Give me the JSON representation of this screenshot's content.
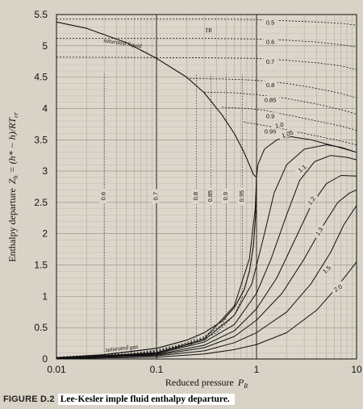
{
  "chart_data": {
    "type": "line",
    "xlabel": "Reduced pressure",
    "xlabel_symbol": "P",
    "xlabel_subscript": "R",
    "ylabel": "Enthalpy departure",
    "ylabel_expr": "Z",
    "ylabel_sub": "h",
    "ylabel_eq": "= (h* − h)/RT",
    "ylabel_eq_sub": "cr",
    "x_scale": "log",
    "xlim": [
      0.01,
      10
    ],
    "ylim": [
      0,
      5.5
    ],
    "x_ticks": [
      0.01,
      0.1,
      1,
      10
    ],
    "x_tick_labels": [
      "0.01",
      "0.1",
      "1",
      "10"
    ],
    "y_ticks": [
      0,
      0.5,
      1,
      1.5,
      2,
      2.5,
      3,
      3.5,
      4,
      4.5,
      5,
      5.5
    ],
    "y_tick_labels": [
      "0",
      "0.5",
      "1",
      "1.5",
      "2",
      "2.5",
      "3",
      "3.5",
      "4",
      "4.5",
      "5",
      "5.5"
    ],
    "grid": true,
    "annotations": {
      "saturated_liquid": "saturated liquid",
      "saturated_gas": "saturated gas",
      "tr": "TR"
    },
    "saturation_curves": [
      {
        "label": "saturated liquid",
        "x": [
          0.01,
          0.02,
          0.05,
          0.1,
          0.2,
          0.3,
          0.45,
          0.6,
          0.75,
          0.85,
          0.93,
          1.0
        ],
        "y": [
          5.38,
          5.28,
          5.05,
          4.8,
          4.5,
          4.25,
          3.9,
          3.6,
          3.3,
          3.1,
          2.95,
          2.9
        ]
      },
      {
        "label": "saturated gas",
        "x": [
          0.01,
          0.03,
          0.1,
          0.2,
          0.3,
          0.45,
          0.6,
          0.75,
          0.85,
          0.93,
          0.98,
          1.0
        ],
        "y": [
          0.02,
          0.07,
          0.17,
          0.3,
          0.42,
          0.6,
          0.82,
          1.1,
          1.4,
          1.8,
          2.3,
          2.9
        ]
      }
    ],
    "liquid_isotherms": [
      {
        "label": "0.5",
        "x": [
          0.01,
          0.3,
          1,
          2,
          4,
          7,
          10
        ],
        "y": [
          5.43,
          5.43,
          5.42,
          5.4,
          5.38,
          5.36,
          5.33
        ]
      },
      {
        "label": "0.6",
        "x": [
          0.01,
          0.3,
          1,
          2,
          4,
          7,
          10
        ],
        "y": [
          5.12,
          5.12,
          5.11,
          5.09,
          5.06,
          5.02,
          4.98
        ]
      },
      {
        "label": "0.7",
        "x": [
          0.01,
          0.3,
          1,
          2,
          4,
          7,
          10
        ],
        "y": [
          4.82,
          4.81,
          4.8,
          4.77,
          4.73,
          4.68,
          4.62
        ]
      },
      {
        "label": "0.8",
        "x": [
          0.2,
          0.5,
          1,
          2,
          4,
          7,
          10
        ],
        "y": [
          4.48,
          4.47,
          4.45,
          4.4,
          4.32,
          4.24,
          4.17
        ]
      },
      {
        "label": "0.85",
        "x": [
          0.3,
          0.6,
          1,
          2,
          4,
          7,
          10
        ],
        "y": [
          4.26,
          4.25,
          4.22,
          4.16,
          4.07,
          3.98,
          3.91
        ]
      },
      {
        "label": "0.9",
        "x": [
          0.45,
          0.8,
          1.2,
          2,
          4,
          7,
          10
        ],
        "y": [
          4.02,
          4.0,
          3.97,
          3.9,
          3.8,
          3.72,
          3.65
        ]
      },
      {
        "label": "0.95",
        "x": [
          0.75,
          1.0,
          1.5,
          2,
          4,
          7,
          10
        ],
        "y": [
          3.78,
          3.75,
          3.7,
          3.66,
          3.56,
          3.48,
          3.42
        ]
      }
    ],
    "gas_isotherms": [
      {
        "label": "0.6",
        "x": [
          0.01,
          0.02,
          0.03
        ],
        "y": [
          0.03,
          0.055,
          0.07
        ]
      },
      {
        "label": "0.7",
        "x": [
          0.01,
          0.03,
          0.06,
          0.1
        ],
        "y": [
          0.02,
          0.06,
          0.12,
          0.17
        ]
      },
      {
        "label": "0.8",
        "x": [
          0.01,
          0.05,
          0.1,
          0.2,
          0.25
        ],
        "y": [
          0.015,
          0.08,
          0.14,
          0.26,
          0.33
        ]
      },
      {
        "label": "0.85",
        "x": [
          0.01,
          0.05,
          0.1,
          0.2,
          0.3,
          0.35
        ],
        "y": [
          0.013,
          0.07,
          0.13,
          0.24,
          0.36,
          0.44
        ]
      },
      {
        "label": "0.9",
        "x": [
          0.01,
          0.05,
          0.1,
          0.2,
          0.3,
          0.45,
          0.5
        ],
        "y": [
          0.012,
          0.06,
          0.12,
          0.22,
          0.34,
          0.55,
          0.66
        ]
      },
      {
        "label": "0.95",
        "x": [
          0.01,
          0.05,
          0.1,
          0.2,
          0.4,
          0.6,
          0.72
        ],
        "y": [
          0.011,
          0.055,
          0.11,
          0.2,
          0.42,
          0.7,
          0.98
        ]
      }
    ],
    "supercritical_isotherms": [
      {
        "label": "1.0",
        "x": [
          0.01,
          0.1,
          0.3,
          0.6,
          0.85,
          0.97,
          1.0,
          1.03,
          1.2,
          1.6,
          2.2,
          3.5,
          6,
          10
        ],
        "y": [
          0.01,
          0.1,
          0.32,
          0.85,
          1.6,
          2.4,
          2.9,
          3.1,
          3.35,
          3.5,
          3.55,
          3.5,
          3.4,
          3.3
        ]
      },
      {
        "label": "1.05",
        "x": [
          0.01,
          0.1,
          0.3,
          0.6,
          0.9,
          1.2,
          1.5,
          2.0,
          3,
          5,
          7,
          10
        ],
        "y": [
          0.01,
          0.09,
          0.3,
          0.7,
          1.2,
          2.0,
          2.65,
          3.1,
          3.35,
          3.42,
          3.38,
          3.3
        ]
      },
      {
        "label": "1.1",
        "x": [
          0.01,
          0.1,
          0.3,
          0.6,
          1.0,
          1.4,
          2.0,
          2.7,
          3.8,
          5.5,
          8,
          10
        ],
        "y": [
          0.01,
          0.08,
          0.27,
          0.55,
          1.05,
          1.6,
          2.3,
          2.85,
          3.15,
          3.25,
          3.22,
          3.18
        ]
      },
      {
        "label": "1.2",
        "x": [
          0.01,
          0.1,
          0.3,
          0.6,
          1.0,
          1.6,
          2.5,
          3.5,
          5,
          7,
          10
        ],
        "y": [
          0.01,
          0.07,
          0.22,
          0.45,
          0.8,
          1.3,
          1.95,
          2.45,
          2.8,
          2.93,
          2.92
        ]
      },
      {
        "label": "1.3",
        "x": [
          0.01,
          0.1,
          0.3,
          0.6,
          1.0,
          1.8,
          3,
          4.5,
          6.5,
          8.5,
          10
        ],
        "y": [
          0.01,
          0.06,
          0.18,
          0.36,
          0.62,
          1.05,
          1.6,
          2.1,
          2.5,
          2.65,
          2.7
        ]
      },
      {
        "label": "1.5",
        "x": [
          0.01,
          0.1,
          0.3,
          0.6,
          1.0,
          2,
          3.5,
          5.5,
          7.5,
          10
        ],
        "y": [
          0.01,
          0.05,
          0.13,
          0.26,
          0.42,
          0.75,
          1.2,
          1.7,
          2.15,
          2.45
        ]
      },
      {
        "label": "2.0",
        "x": [
          0.01,
          0.1,
          0.3,
          0.6,
          1.0,
          2,
          4,
          6,
          8,
          10
        ],
        "y": [
          0.005,
          0.03,
          0.08,
          0.15,
          0.23,
          0.42,
          0.78,
          1.1,
          1.35,
          1.55
        ]
      }
    ]
  },
  "caption": {
    "figure_number": "FIGURE D.2",
    "text": "Lee-Kesler imple fluid enthalpy departure."
  }
}
